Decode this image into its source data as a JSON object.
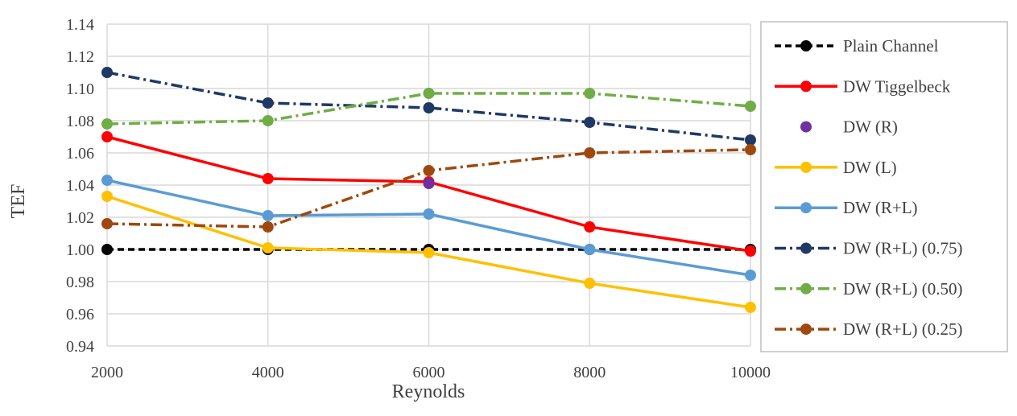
{
  "chart_data": {
    "type": "line",
    "title": "",
    "xlabel": "Reynolds",
    "ylabel": "TEF",
    "categories": [
      "2000",
      "4000",
      "6000",
      "8000",
      "10000"
    ],
    "ylim": [
      0.94,
      1.14
    ],
    "yticks": [
      "0.94",
      "0.96",
      "0.98",
      "1.00",
      "1.02",
      "1.04",
      "1.06",
      "1.08",
      "1.10",
      "1.12",
      "1.14"
    ],
    "grid": "on",
    "legend_position": "right",
    "series": [
      {
        "name": "Plain Channel",
        "values": [
          1.0,
          1.0,
          1.0,
          1.0,
          1.0
        ],
        "color": "#000000",
        "line": "dashed"
      },
      {
        "name": "DW Tiggelbeck",
        "values": [
          1.07,
          1.044,
          1.042,
          1.014,
          0.999
        ],
        "color": "#ff0000",
        "line": "solid"
      },
      {
        "name": "DW (R)",
        "values": [
          null,
          null,
          1.041,
          null,
          null
        ],
        "color": "#7030a0",
        "line": "none"
      },
      {
        "name": "DW (L)",
        "values": [
          1.033,
          1.001,
          0.998,
          0.979,
          0.964
        ],
        "color": "#ffc000",
        "line": "solid"
      },
      {
        "name": "DW (R+L)",
        "values": [
          1.043,
          1.021,
          1.022,
          1.0,
          0.984
        ],
        "color": "#5b9bd5",
        "line": "solid"
      },
      {
        "name": "DW (R+L) (0.75)",
        "values": [
          1.11,
          1.091,
          1.088,
          1.079,
          1.068
        ],
        "color": "#1f3864",
        "line": "dashdot"
      },
      {
        "name": "DW (R+L) (0.50)",
        "values": [
          1.078,
          1.08,
          1.097,
          1.097,
          1.089
        ],
        "color": "#70ad47",
        "line": "dashdot"
      },
      {
        "name": "DW (R+L) (0.25)",
        "values": [
          1.016,
          1.014,
          1.049,
          1.06,
          1.062
        ],
        "color": "#9e480e",
        "line": "dashdot"
      }
    ]
  }
}
